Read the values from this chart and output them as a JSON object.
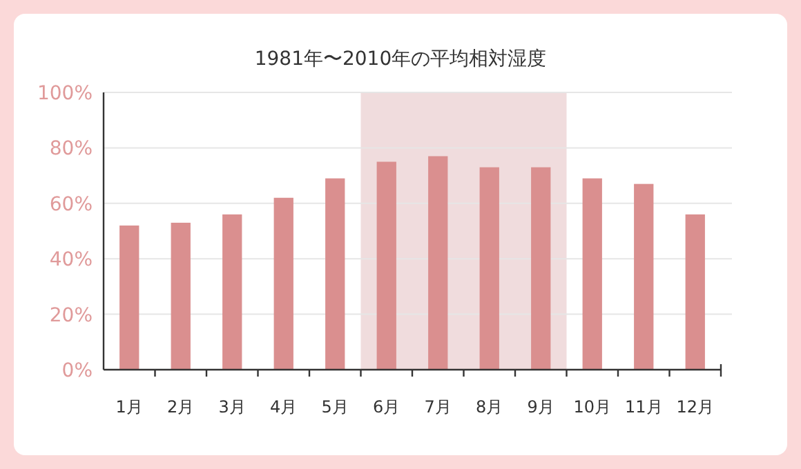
{
  "chart_data": {
    "type": "bar",
    "title": "1981年〜2010年の平均相対湿度",
    "categories": [
      "1月",
      "2月",
      "3月",
      "4月",
      "5月",
      "6月",
      "7月",
      "8月",
      "9月",
      "10月",
      "11月",
      "12月"
    ],
    "values": [
      52,
      53,
      56,
      62,
      69,
      75,
      77,
      73,
      73,
      69,
      67,
      56
    ],
    "color": "#da8f8f",
    "ylim": [
      0,
      100
    ],
    "yticks": [
      {
        "value": 0,
        "label": "0%"
      },
      {
        "value": 20,
        "label": "20%"
      },
      {
        "value": 40,
        "label": "40%"
      },
      {
        "value": 60,
        "label": "60%"
      },
      {
        "value": 80,
        "label": "80%"
      },
      {
        "value": 100,
        "label": "100%"
      }
    ],
    "grid": "y",
    "bands": [
      {
        "axis": "x",
        "from": "6月",
        "to": "9月",
        "color": "#f0dcdd"
      }
    ]
  }
}
